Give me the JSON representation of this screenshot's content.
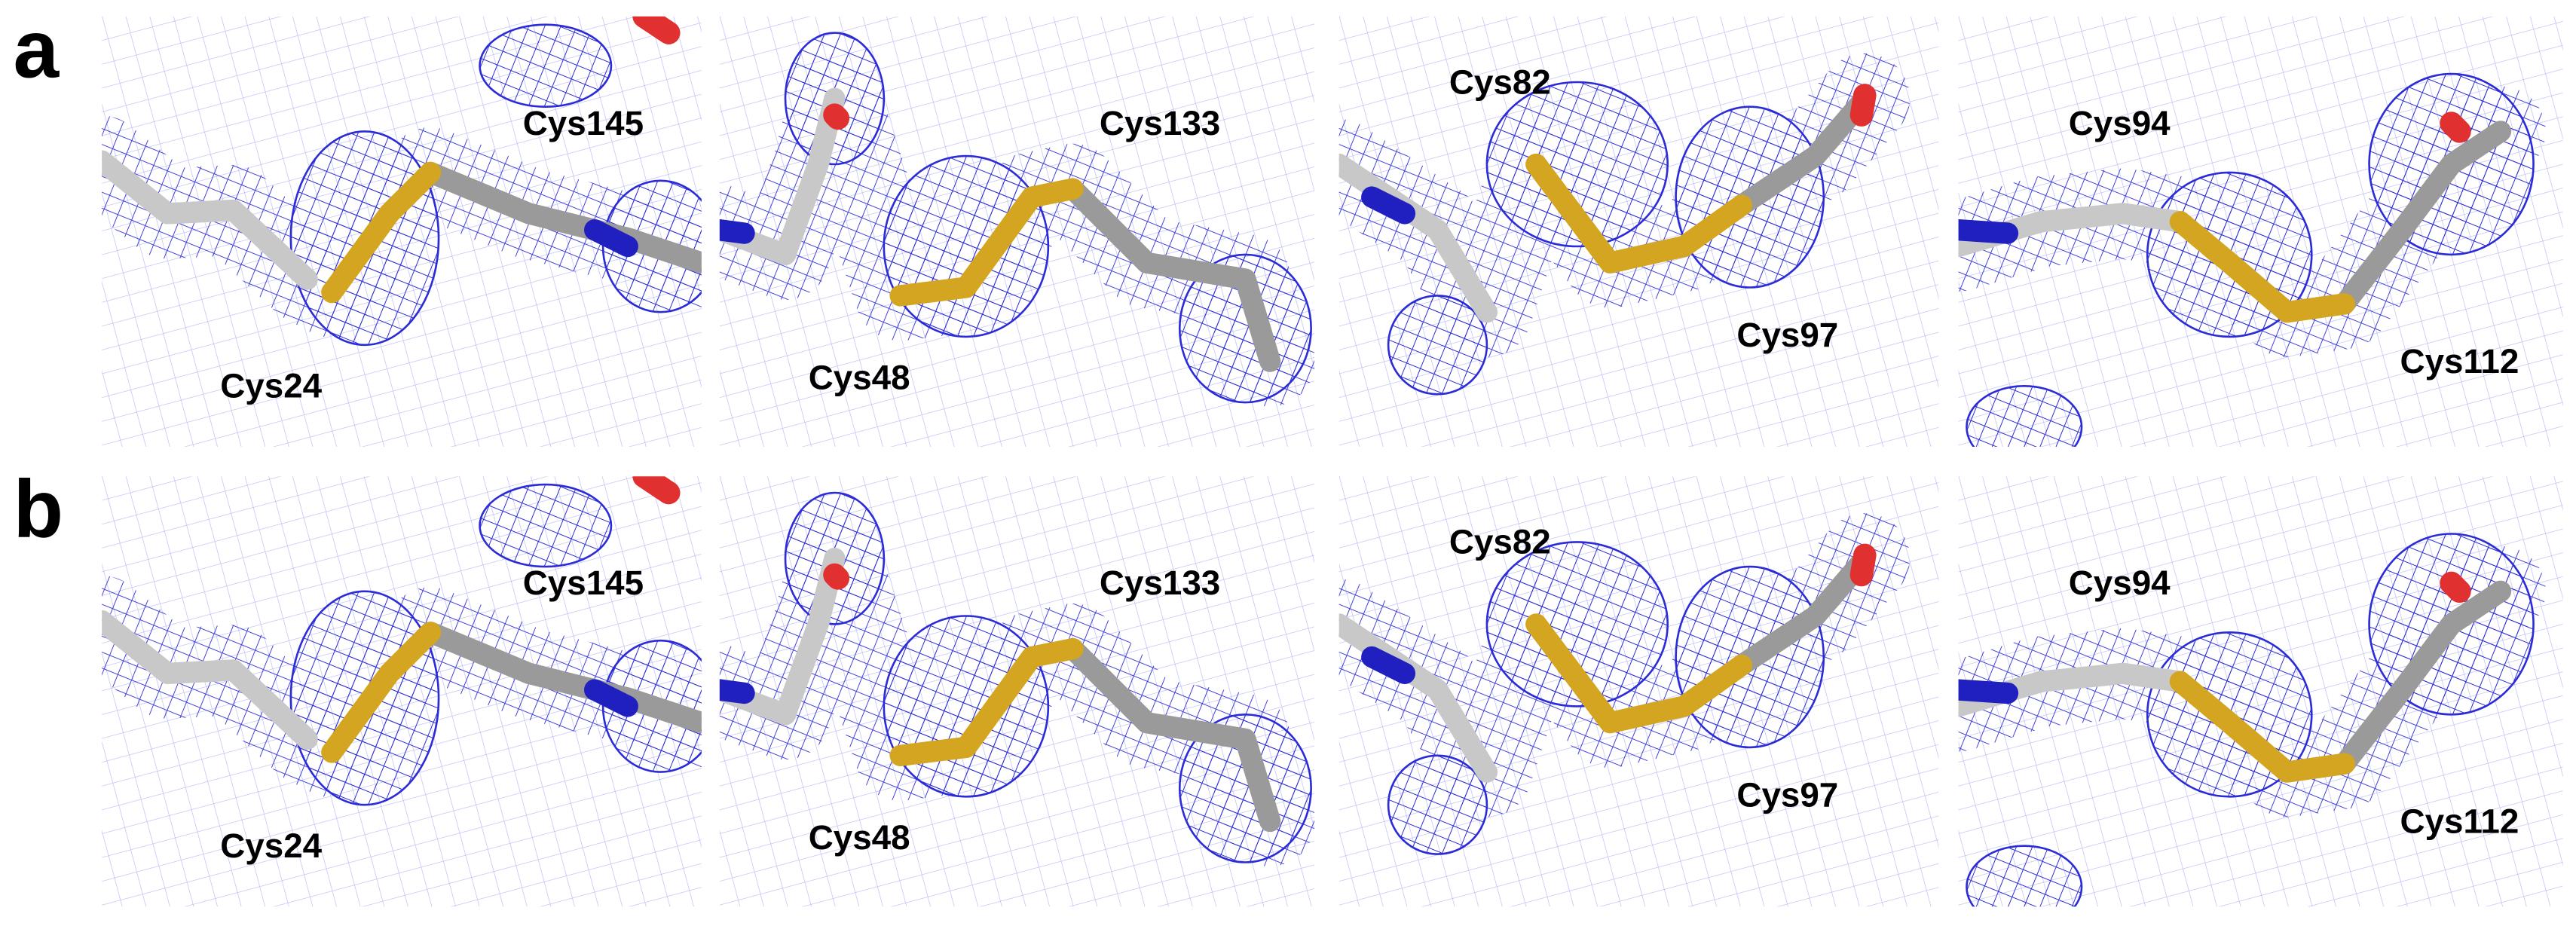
{
  "rows": [
    {
      "label": "a",
      "panels": [
        [
          "Cys145",
          "Cys24"
        ],
        [
          "Cys133",
          "Cys48"
        ],
        [
          "Cys82",
          "Cys97"
        ],
        [
          "Cys94",
          "Cys112"
        ]
      ]
    },
    {
      "label": "b",
      "panels": [
        [
          "Cys145",
          "Cys24"
        ],
        [
          "Cys133",
          "Cys48"
        ],
        [
          "Cys82",
          "Cys97"
        ],
        [
          "Cys94",
          "Cys112"
        ]
      ]
    }
  ]
}
